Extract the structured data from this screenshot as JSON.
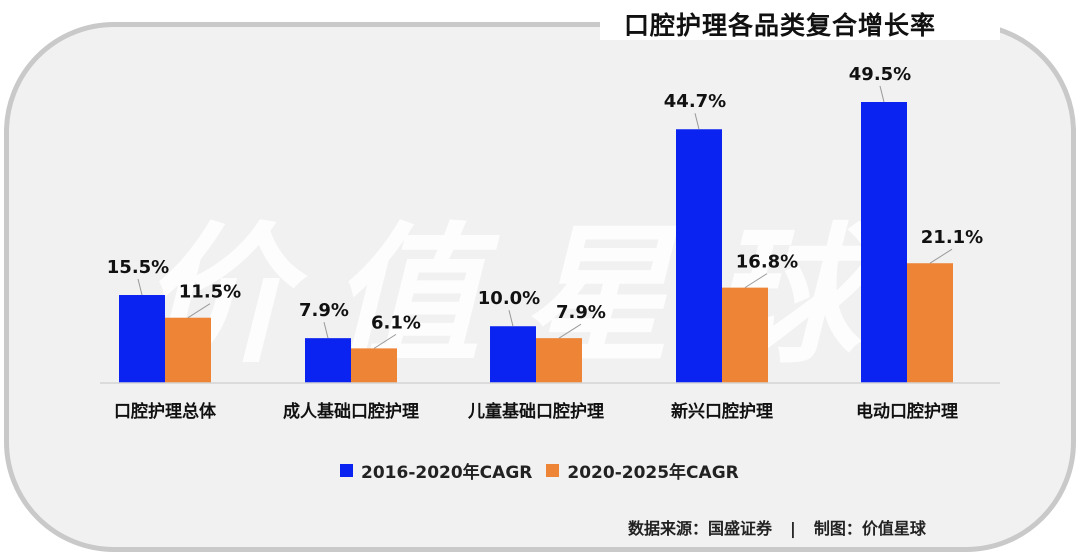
{
  "title": "口腔护理各品类复合增长率",
  "watermark": "价值星球",
  "chart_data": {
    "type": "bar",
    "categories": [
      "口腔护理总体",
      "成人基础口腔护理",
      "儿童基础口腔护理",
      "新兴口腔护理",
      "电动口腔护理"
    ],
    "series": [
      {
        "name": "2016-2020年CAGR",
        "values": [
          15.5,
          7.9,
          10.0,
          44.7,
          49.5
        ],
        "labels": [
          "15.5%",
          "7.9%",
          "10.0%",
          "44.7%",
          "49.5%"
        ],
        "color": "#0b23f0"
      },
      {
        "name": "2020-2025年CAGR",
        "values": [
          11.5,
          6.1,
          7.9,
          16.8,
          21.1
        ],
        "labels": [
          "11.5%",
          "6.1%",
          "7.9%",
          "16.8%",
          "21.1%"
        ],
        "color": "#ee8436"
      }
    ],
    "ylim": [
      0,
      52
    ],
    "legend_position": "bottom",
    "grid": false
  },
  "source": {
    "data_source": "数据来源：国盛证券",
    "separator": "|",
    "made_by": "制图：价值星球"
  }
}
